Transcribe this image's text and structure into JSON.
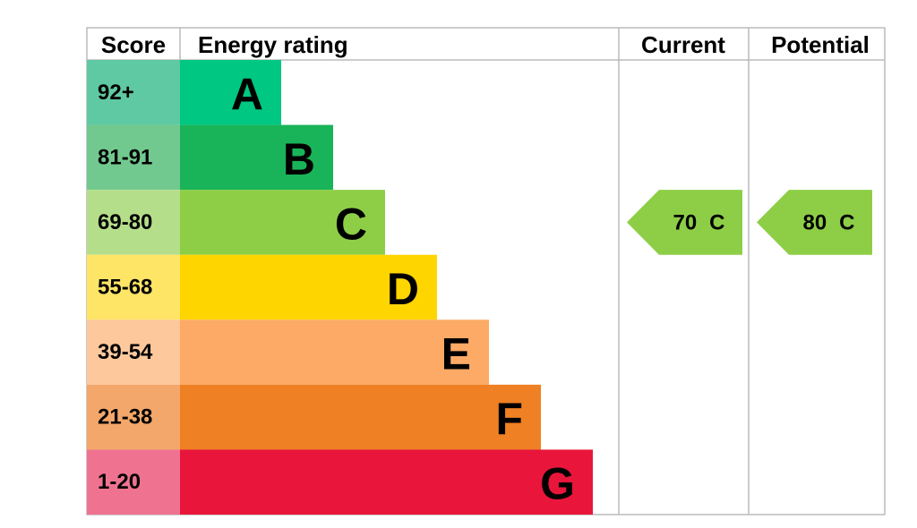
{
  "header": {
    "score": "Score",
    "rating": "Energy rating",
    "current": "Current",
    "potential": "Potential"
  },
  "rows": [
    {
      "score": "92+",
      "letter": "A",
      "color": "#00c781",
      "score_color": "#5fc9a3"
    },
    {
      "score": "81-91",
      "letter": "B",
      "color": "#19b459",
      "score_color": "#72c98f"
    },
    {
      "score": "69-80",
      "letter": "C",
      "color": "#8dce46",
      "score_color": "#b5de8a"
    },
    {
      "score": "55-68",
      "letter": "D",
      "color": "#ffd500",
      "score_color": "#ffe566"
    },
    {
      "score": "39-54",
      "letter": "E",
      "color": "#fcaa65",
      "score_color": "#fdc89c"
    },
    {
      "score": "21-38",
      "letter": "F",
      "color": "#ef8023",
      "score_color": "#f4a76a"
    },
    {
      "score": "1-20",
      "letter": "G",
      "color": "#e9153b",
      "score_color": "#ef7390"
    }
  ],
  "current": {
    "score": 70,
    "rating": "C"
  },
  "potential": {
    "score": 80,
    "rating": "C"
  }
}
